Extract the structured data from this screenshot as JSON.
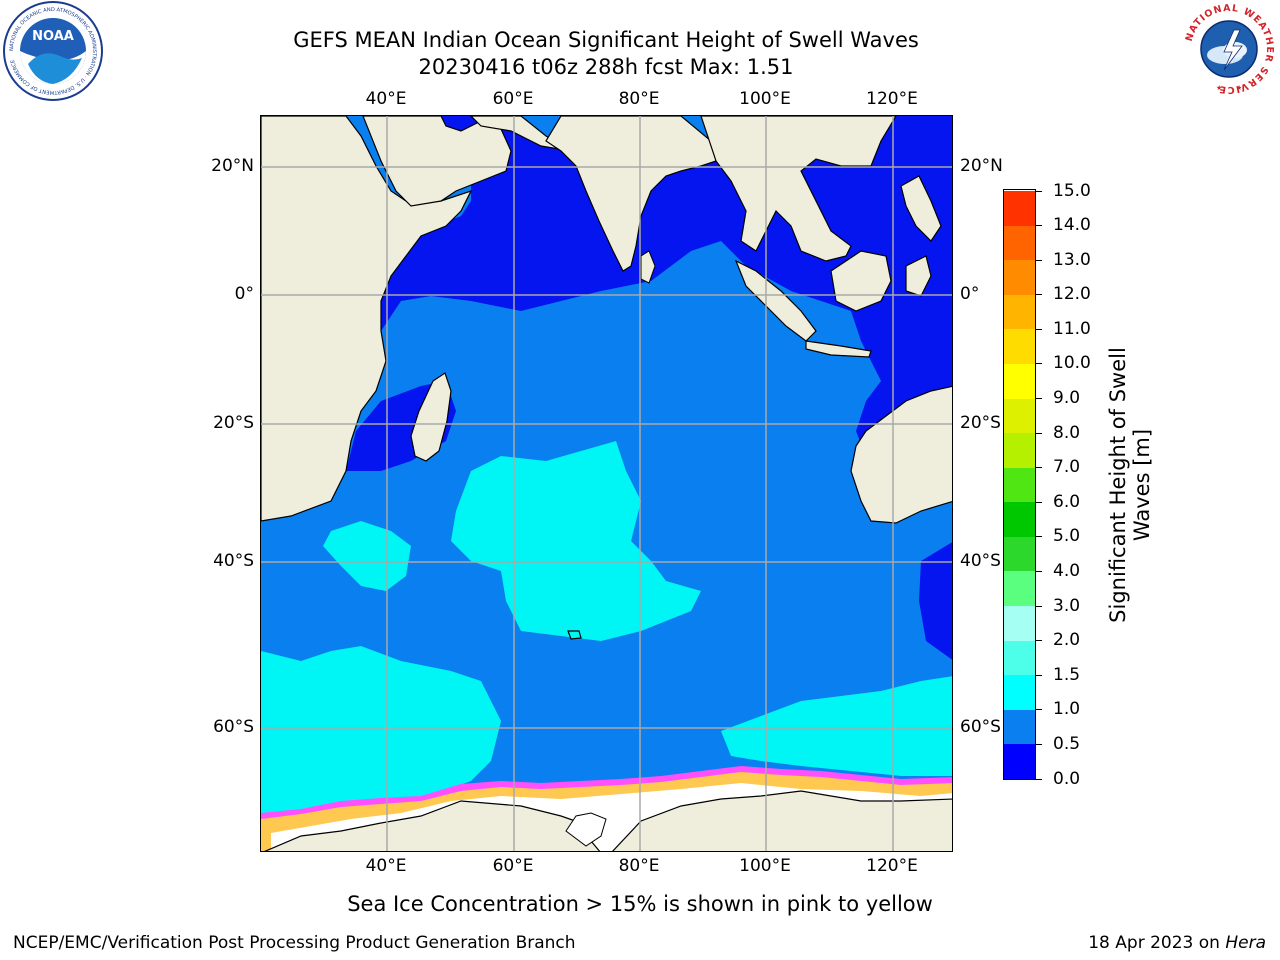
{
  "title": {
    "line1": "GEFS MEAN Indian Ocean Significant Height of Swell Waves",
    "line2": "20230416 t06z 288h fcst   Max: 1.51"
  },
  "map": {
    "lon_ticks": [
      "40°E",
      "60°E",
      "80°E",
      "100°E",
      "120°E"
    ],
    "lat_ticks": [
      "20°N",
      "0°",
      "20°S",
      "40°S",
      "60°S"
    ],
    "colors": {
      "land": "#efeedd",
      "ocean_0_05": "#0515f0",
      "ocean_05_1": "#0a7ff0",
      "ocean_1_15": "#00f5f5",
      "ice_white": "#ffffff",
      "ice_pink": "#ff50ff",
      "ice_yellow": "#ffc850",
      "grid": "#a9a9a9"
    },
    "ice_note": "Sea Ice Concentration > 15% is shown in pink to yellow"
  },
  "colorbar": {
    "title_line1": "Significant Height of Swell",
    "title_line2": "Waves [m]",
    "labels": [
      "0.0",
      "0.5",
      "1.0",
      "1.5",
      "2.0",
      "3.0",
      "4.0",
      "5.0",
      "6.0",
      "7.0",
      "8.0",
      "9.0",
      "10.0",
      "11.0",
      "12.0",
      "13.0",
      "14.0",
      "15.0"
    ],
    "colors": [
      "#0000ff",
      "#0a7ff0",
      "#00ffff",
      "#4dffe9",
      "#a6fff3",
      "#5aff80",
      "#2dd82d",
      "#00c800",
      "#50e614",
      "#b4f000",
      "#dcf000",
      "#ffff00",
      "#ffdc00",
      "#ffb400",
      "#ff8c00",
      "#ff6400",
      "#ff3200",
      "#ff0000"
    ]
  },
  "footer": {
    "left": "NCEP/EMC/Verification Post Processing Product Generation Branch",
    "date": "18 Apr 2023 on ",
    "host": "Hera"
  },
  "logos": {
    "noaa_text": "NOAA",
    "noaa_ring": "NATIONAL OCEANIC AND ATMOSPHERIC ADMINISTRATION · U.S. DEPARTMENT OF COMMERCE",
    "nws_ring": "NATIONAL WEATHER SERVICE"
  }
}
